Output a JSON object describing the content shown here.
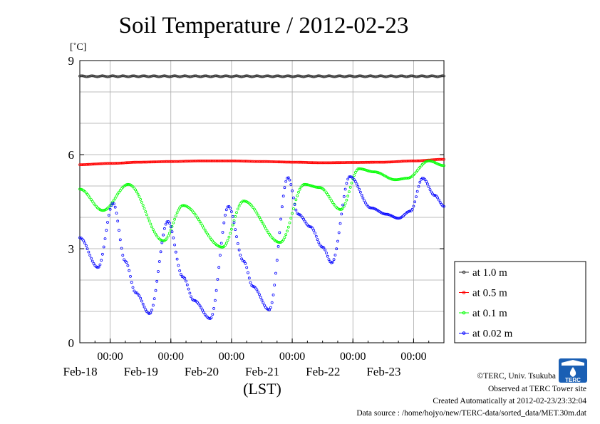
{
  "chart_data": {
    "type": "line",
    "title": "Soil Temperature / 2012-02-23",
    "ylabel_unit": "[˚C]",
    "xlabel": "(LST)",
    "ylim": [
      0,
      9
    ],
    "yticks": [
      "0",
      "3",
      "6",
      "9"
    ],
    "xlim_days": [
      -0.5,
      5.5
    ],
    "xticks": [
      {
        "time": "00:00",
        "date": "Feb-18"
      },
      {
        "time": "00:00",
        "date": "Feb-19"
      },
      {
        "time": "00:00",
        "date": "Feb-20"
      },
      {
        "time": "00:00",
        "date": "Feb-21"
      },
      {
        "time": "00:00",
        "date": "Feb-22"
      },
      {
        "time": "00:00",
        "date": "Feb-23"
      }
    ],
    "grid": true,
    "legend_position": "right",
    "series": [
      {
        "name": "at 1.0 m",
        "color": "#333333",
        "points": [
          [
            -0.5,
            8.5
          ],
          [
            0,
            8.5
          ],
          [
            0.5,
            8.5
          ],
          [
            1,
            8.5
          ],
          [
            1.5,
            8.5
          ],
          [
            2,
            8.5
          ],
          [
            2.5,
            8.5
          ],
          [
            3,
            8.5
          ],
          [
            3.5,
            8.5
          ],
          [
            4,
            8.5
          ],
          [
            4.5,
            8.5
          ],
          [
            5,
            8.5
          ],
          [
            5.5,
            8.5
          ]
        ]
      },
      {
        "name": "at 0.5 m",
        "color": "#ff0000",
        "points": [
          [
            -0.5,
            5.68
          ],
          [
            0,
            5.72
          ],
          [
            0.5,
            5.76
          ],
          [
            1,
            5.78
          ],
          [
            1.5,
            5.8
          ],
          [
            2,
            5.8
          ],
          [
            2.5,
            5.78
          ],
          [
            3,
            5.76
          ],
          [
            3.5,
            5.74
          ],
          [
            4,
            5.75
          ],
          [
            4.5,
            5.76
          ],
          [
            5,
            5.8
          ],
          [
            5.5,
            5.85
          ]
        ]
      },
      {
        "name": "at 0.1 m",
        "color": "#00ff00",
        "points": [
          [
            -0.5,
            4.9
          ],
          [
            -0.12,
            4.22
          ],
          [
            0.3,
            5.05
          ],
          [
            0.88,
            3.25
          ],
          [
            1.2,
            4.38
          ],
          [
            1.85,
            3.05
          ],
          [
            2.2,
            4.52
          ],
          [
            2.8,
            3.2
          ],
          [
            3.2,
            5.05
          ],
          [
            3.45,
            4.95
          ],
          [
            3.8,
            4.25
          ],
          [
            4.1,
            5.55
          ],
          [
            4.35,
            5.45
          ],
          [
            4.7,
            5.2
          ],
          [
            4.9,
            5.25
          ],
          [
            5.25,
            5.8
          ],
          [
            5.5,
            5.65
          ]
        ]
      },
      {
        "name": "at 0.02 m",
        "color": "#0000ff",
        "points": [
          [
            -0.5,
            3.35
          ],
          [
            -0.2,
            2.4
          ],
          [
            0.05,
            4.45
          ],
          [
            0.25,
            2.6
          ],
          [
            0.42,
            1.6
          ],
          [
            0.65,
            0.93
          ],
          [
            0.95,
            3.87
          ],
          [
            1.2,
            2.1
          ],
          [
            1.38,
            1.35
          ],
          [
            1.65,
            0.77
          ],
          [
            1.95,
            4.35
          ],
          [
            2.2,
            2.6
          ],
          [
            2.35,
            1.8
          ],
          [
            2.62,
            1.05
          ],
          [
            2.93,
            5.27
          ],
          [
            3.1,
            4.1
          ],
          [
            3.3,
            3.7
          ],
          [
            3.5,
            3.05
          ],
          [
            3.65,
            2.55
          ],
          [
            3.95,
            5.3
          ],
          [
            4.3,
            4.3
          ],
          [
            4.55,
            4.1
          ],
          [
            4.75,
            3.97
          ],
          [
            4.95,
            4.2
          ],
          [
            5.15,
            5.25
          ],
          [
            5.35,
            4.7
          ],
          [
            5.5,
            4.35
          ]
        ]
      }
    ]
  },
  "credits": {
    "copyright": "©TERC, Univ. Tsukuba",
    "observed": "Observed at TERC Tower site",
    "created": "Created Automatically at 2012-02-23/23:32:04",
    "source": "Data source : /home/hojyo/new/TERC-data/sorted_data/MET.30m.dat",
    "logo_text": "TERC"
  }
}
